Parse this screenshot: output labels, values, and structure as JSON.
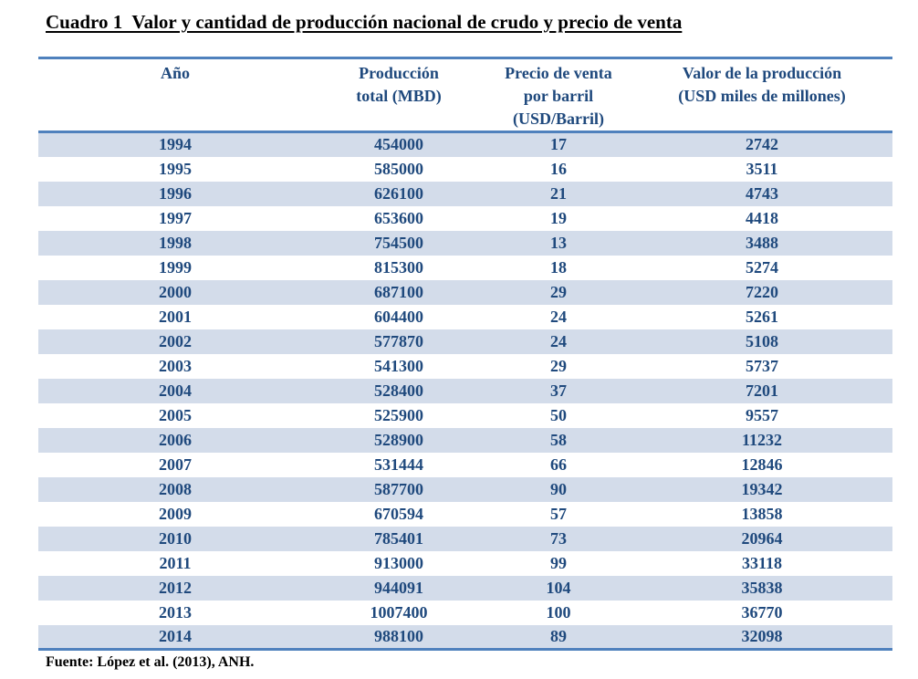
{
  "title": "Cuadro 1  Valor y cantidad de producción nacional de crudo y precio de venta",
  "source": "Fuente: López et al. (2013), ANH.",
  "colors": {
    "accent_border": "#4F81BD",
    "row_stripe": "#D3DCEA",
    "table_text": "#1F497D",
    "title_text": "#000000"
  },
  "table": {
    "columns": [
      {
        "lines": [
          "Año"
        ]
      },
      {
        "lines": [
          "Producción",
          "total (MBD)"
        ]
      },
      {
        "lines": [
          "Precio de venta",
          "por barril",
          "(USD/Barril)"
        ]
      },
      {
        "lines": [
          "Valor de la producción",
          "(USD miles de millones)"
        ]
      }
    ],
    "rows": [
      {
        "year": "1994",
        "production": "454000",
        "price": "17",
        "value": "2742"
      },
      {
        "year": "1995",
        "production": "585000",
        "price": "16",
        "value": "3511"
      },
      {
        "year": "1996",
        "production": "626100",
        "price": "21",
        "value": "4743"
      },
      {
        "year": "1997",
        "production": "653600",
        "price": "19",
        "value": "4418"
      },
      {
        "year": "1998",
        "production": "754500",
        "price": "13",
        "value": "3488"
      },
      {
        "year": "1999",
        "production": "815300",
        "price": "18",
        "value": "5274"
      },
      {
        "year": "2000",
        "production": "687100",
        "price": "29",
        "value": "7220"
      },
      {
        "year": "2001",
        "production": "604400",
        "price": "24",
        "value": "5261"
      },
      {
        "year": "2002",
        "production": "577870",
        "price": "24",
        "value": "5108"
      },
      {
        "year": "2003",
        "production": "541300",
        "price": "29",
        "value": "5737"
      },
      {
        "year": "2004",
        "production": "528400",
        "price": "37",
        "value": "7201"
      },
      {
        "year": "2005",
        "production": "525900",
        "price": "50",
        "value": "9557"
      },
      {
        "year": "2006",
        "production": "528900",
        "price": "58",
        "value": "11232"
      },
      {
        "year": "2007",
        "production": "531444",
        "price": "66",
        "value": "12846"
      },
      {
        "year": "2008",
        "production": "587700",
        "price": "90",
        "value": "19342"
      },
      {
        "year": "2009",
        "production": "670594",
        "price": "57",
        "value": "13858"
      },
      {
        "year": "2010",
        "production": "785401",
        "price": "73",
        "value": "20964"
      },
      {
        "year": "2011",
        "production": "913000",
        "price": "99",
        "value": "33118"
      },
      {
        "year": "2012",
        "production": "944091",
        "price": "104",
        "value": "35838"
      },
      {
        "year": "2013",
        "production": "1007400",
        "price": "100",
        "value": "36770"
      },
      {
        "year": "2014",
        "production": "988100",
        "price": "89",
        "value": "32098"
      }
    ]
  }
}
